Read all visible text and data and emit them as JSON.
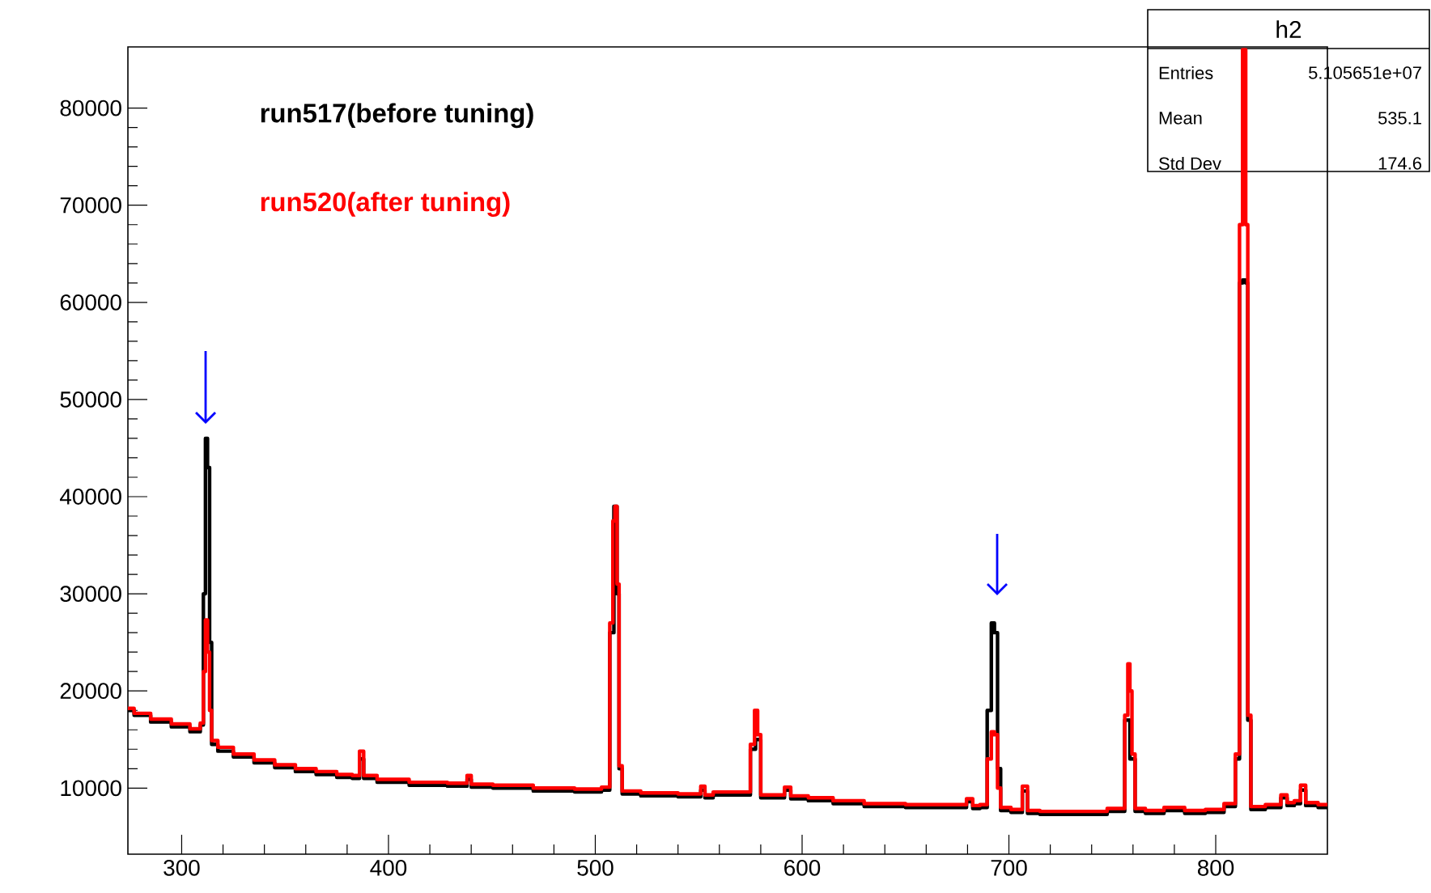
{
  "chart_data": {
    "type": "step",
    "legend": "top left",
    "xlim": [
      274,
      854
    ],
    "ylim": [
      3200,
      86300
    ],
    "xticks": [
      300,
      400,
      500,
      600,
      700,
      800
    ],
    "yticks": [
      10000,
      20000,
      30000,
      40000,
      50000,
      60000,
      70000,
      80000
    ],
    "annotations": [
      "h2",
      "Entries",
      "5.105651e+07",
      "Mean",
      "535.1",
      "Std Dev",
      "174.6"
    ],
    "series": [
      {
        "name": "run517(before tuning)",
        "color": "#000000",
        "x": [
          274,
          280,
          290,
          300,
          308,
          310,
          311,
          312,
          313,
          314,
          315,
          320,
          330,
          340,
          350,
          360,
          370,
          380,
          385,
          387,
          389,
          400,
          420,
          437,
          439,
          441,
          460,
          480,
          500,
          506,
          508,
          509,
          510,
          511,
          512,
          514,
          530,
          550,
          552,
          554,
          560,
          574,
          576,
          578,
          579,
          581,
          590,
          593,
          596,
          610,
          620,
          640,
          660,
          678,
          681,
          684,
          688,
          691,
          692,
          694,
          695,
          697,
          705,
          708,
          710,
          720,
          740,
          755,
          757,
          758,
          759,
          760,
          762,
          770,
          780,
          790,
          800,
          808,
          811,
          812,
          814,
          815,
          816,
          818,
          830,
          833,
          836,
          840,
          842,
          845,
          854
        ],
        "values": [
          18000,
          17500,
          16800,
          16300,
          15800,
          16500,
          30000,
          46000,
          43000,
          25000,
          14500,
          13800,
          13200,
          12600,
          12100,
          11700,
          11400,
          11100,
          11000,
          13000,
          11000,
          10600,
          10300,
          10200,
          10900,
          10100,
          10000,
          9700,
          9600,
          9800,
          26000,
          null,
          39000,
          30000,
          12000,
          9400,
          9200,
          9100,
          9800,
          9000,
          9300,
          9300,
          14000,
          null,
          15000,
          9000,
          9000,
          9800,
          8900,
          8700,
          8400,
          8100,
          8000,
          8000,
          8600,
          7900,
          8000,
          18000,
          27000,
          26000,
          12000,
          7700,
          7500,
          9700,
          7400,
          7300,
          7300,
          7600,
          17000,
          null,
          null,
          13000,
          7600,
          7400,
          7700,
          7400,
          7500,
          8100,
          13000,
          62000,
          62300,
          62000,
          17000,
          7800,
          8000,
          9000,
          8200,
          8400,
          9800,
          8200,
          8000
        ]
      },
      {
        "name": "run520(after tuning)",
        "color": "#ff0000",
        "x": [
          274,
          280,
          290,
          300,
          308,
          310,
          311,
          312,
          313,
          314,
          315,
          320,
          330,
          340,
          350,
          360,
          370,
          380,
          385,
          387,
          389,
          400,
          420,
          437,
          439,
          441,
          460,
          480,
          500,
          506,
          508,
          509,
          510,
          511,
          512,
          514,
          530,
          550,
          552,
          554,
          560,
          574,
          576,
          578,
          579,
          581,
          590,
          593,
          596,
          610,
          620,
          640,
          660,
          678,
          681,
          684,
          688,
          691,
          692,
          694,
          695,
          697,
          705,
          708,
          710,
          720,
          740,
          755,
          757,
          758,
          759,
          760,
          762,
          770,
          780,
          790,
          800,
          808,
          811,
          812,
          814,
          815,
          816,
          818,
          830,
          833,
          836,
          840,
          842,
          845,
          854
        ],
        "values": [
          18200,
          17700,
          17100,
          16600,
          16100,
          16700,
          22000,
          27300,
          24000,
          18000,
          14900,
          14200,
          13500,
          12900,
          12400,
          12000,
          11700,
          11400,
          11300,
          13800,
          11300,
          10900,
          10600,
          10500,
          11300,
          10400,
          10300,
          10000,
          9900,
          10100,
          27000,
          37500,
          39000,
          31000,
          12300,
          9700,
          9500,
          9400,
          10200,
          9300,
          9600,
          9600,
          14500,
          18000,
          15500,
          9300,
          9300,
          10100,
          9200,
          9000,
          8700,
          8400,
          8300,
          8300,
          8900,
          8200,
          8300,
          13000,
          15800,
          15500,
          10000,
          8000,
          7800,
          10200,
          7700,
          7600,
          7600,
          7900,
          17500,
          22800,
          20000,
          13500,
          7900,
          7700,
          8000,
          7700,
          7800,
          8400,
          13500,
          68000,
          86000,
          68000,
          17500,
          8100,
          8300,
          9300,
          8500,
          8700,
          10300,
          8500,
          8300
        ]
      }
    ]
  }
}
